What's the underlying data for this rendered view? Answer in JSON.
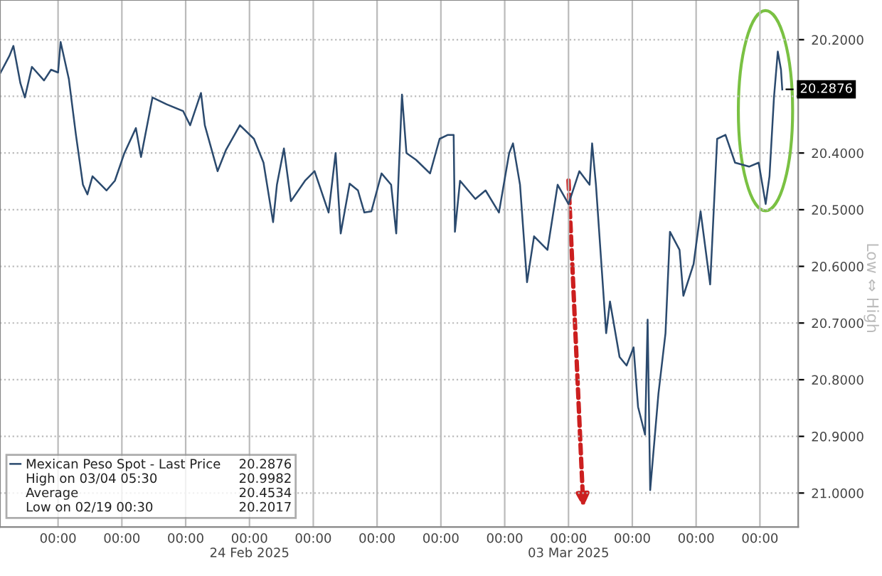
{
  "chart_data": {
    "type": "line",
    "x": [
      -0.91,
      -0.76,
      -0.7,
      -0.59,
      -0.52,
      -0.41,
      -0.22,
      -0.11,
      0.0,
      0.04,
      0.17,
      0.28,
      0.39,
      0.46,
      0.54,
      0.76,
      0.89,
      1.04,
      1.22,
      1.3,
      1.41,
      1.48,
      1.7,
      1.96,
      2.07,
      2.24,
      2.3,
      2.5,
      2.63,
      2.85,
      3.07,
      3.22,
      3.37,
      3.43,
      3.54,
      3.65,
      3.87,
      4.02,
      4.24,
      4.35,
      4.43,
      4.57,
      4.7,
      4.8,
      4.91,
      5.07,
      5.22,
      5.3,
      5.39,
      5.46,
      5.61,
      5.83,
      5.98,
      6.11,
      6.2,
      6.22,
      6.3,
      6.54,
      6.7,
      6.91,
      7.07,
      7.13,
      7.24,
      7.35,
      7.46,
      7.67,
      7.83,
      8.0,
      8.17,
      8.33,
      8.37,
      8.43,
      8.59,
      8.65,
      8.8,
      8.91,
      9.02,
      9.09,
      9.2,
      9.24,
      9.28,
      9.41,
      9.52,
      9.59,
      9.74,
      9.8,
      9.96,
      10.07,
      10.22,
      10.33,
      10.46,
      10.61,
      10.83,
      10.98,
      11.09,
      11.15,
      11.22,
      11.28,
      11.33,
      11.35
    ],
    "series": [
      {
        "name": "Mexican Peso Spot - Last Price",
        "color": "#2b4a6e",
        "values": [
          20.26,
          20.228,
          20.211,
          20.277,
          20.302,
          20.248,
          20.272,
          20.253,
          20.258,
          20.204,
          20.27,
          20.368,
          20.456,
          20.473,
          20.441,
          20.466,
          20.449,
          20.4,
          20.356,
          20.407,
          20.343,
          20.302,
          20.314,
          20.326,
          20.351,
          20.294,
          20.351,
          20.432,
          20.395,
          20.351,
          20.375,
          20.417,
          20.522,
          20.456,
          20.392,
          20.485,
          20.449,
          20.432,
          20.505,
          20.4,
          20.542,
          20.454,
          20.466,
          20.505,
          20.503,
          20.436,
          20.456,
          20.542,
          20.297,
          20.4,
          20.412,
          20.436,
          20.375,
          20.368,
          20.368,
          20.539,
          20.449,
          20.481,
          20.466,
          20.505,
          20.4,
          20.383,
          20.456,
          20.628,
          20.547,
          20.571,
          20.456,
          20.49,
          20.432,
          20.456,
          20.383,
          20.456,
          20.718,
          20.662,
          20.76,
          20.775,
          20.743,
          20.848,
          20.897,
          20.694,
          20.995,
          20.824,
          20.718,
          20.539,
          20.571,
          20.652,
          20.596,
          20.503,
          20.632,
          20.375,
          20.368,
          20.417,
          20.424,
          20.417,
          20.49,
          20.441,
          20.302,
          20.221,
          20.253,
          20.288
        ]
      }
    ],
    "xlim": [
      -0.91,
      11.6
    ],
    "xticks": [
      {
        "value": 0,
        "label": "00:00"
      },
      {
        "value": 1,
        "label": "00:00"
      },
      {
        "value": 2,
        "label": "00:00"
      },
      {
        "value": 3,
        "label": "00:00\n24 Feb 2025"
      },
      {
        "value": 4,
        "label": "00:00"
      },
      {
        "value": 5,
        "label": "00:00"
      },
      {
        "value": 6,
        "label": "00:00"
      },
      {
        "value": 7,
        "label": "00:00"
      },
      {
        "value": 8,
        "label": "00:00\n03 Mar 2025"
      },
      {
        "value": 9,
        "label": "00:00"
      },
      {
        "value": 10,
        "label": "00:00"
      },
      {
        "value": 11,
        "label": "00:00"
      }
    ],
    "ylim": [
      21.06,
      20.13
    ],
    "yticks": [
      {
        "value": 20.2,
        "label": "20.2000"
      },
      {
        "value": 20.3,
        "label": null
      },
      {
        "value": 20.4,
        "label": "20.4000"
      },
      {
        "value": 20.5,
        "label": "20.5000"
      },
      {
        "value": 20.6,
        "label": "20.6000"
      },
      {
        "value": 20.7,
        "label": "20.7000"
      },
      {
        "value": 20.8,
        "label": "20.8000"
      },
      {
        "value": 20.9,
        "label": "20.9000"
      },
      {
        "value": 21.0,
        "label": "21.0000"
      }
    ],
    "grid": true,
    "legend": "bottom left",
    "annotations": [
      "Low ⇔ High",
      {
        "text": "20.2876",
        "x": 11.35,
        "y": 20.2876
      },
      "20.2876",
      "High on 03/04 05:30",
      "20.9982",
      "Average",
      "20.4534",
      "Low on 02/19 00:30",
      "20.2017"
    ]
  }
}
